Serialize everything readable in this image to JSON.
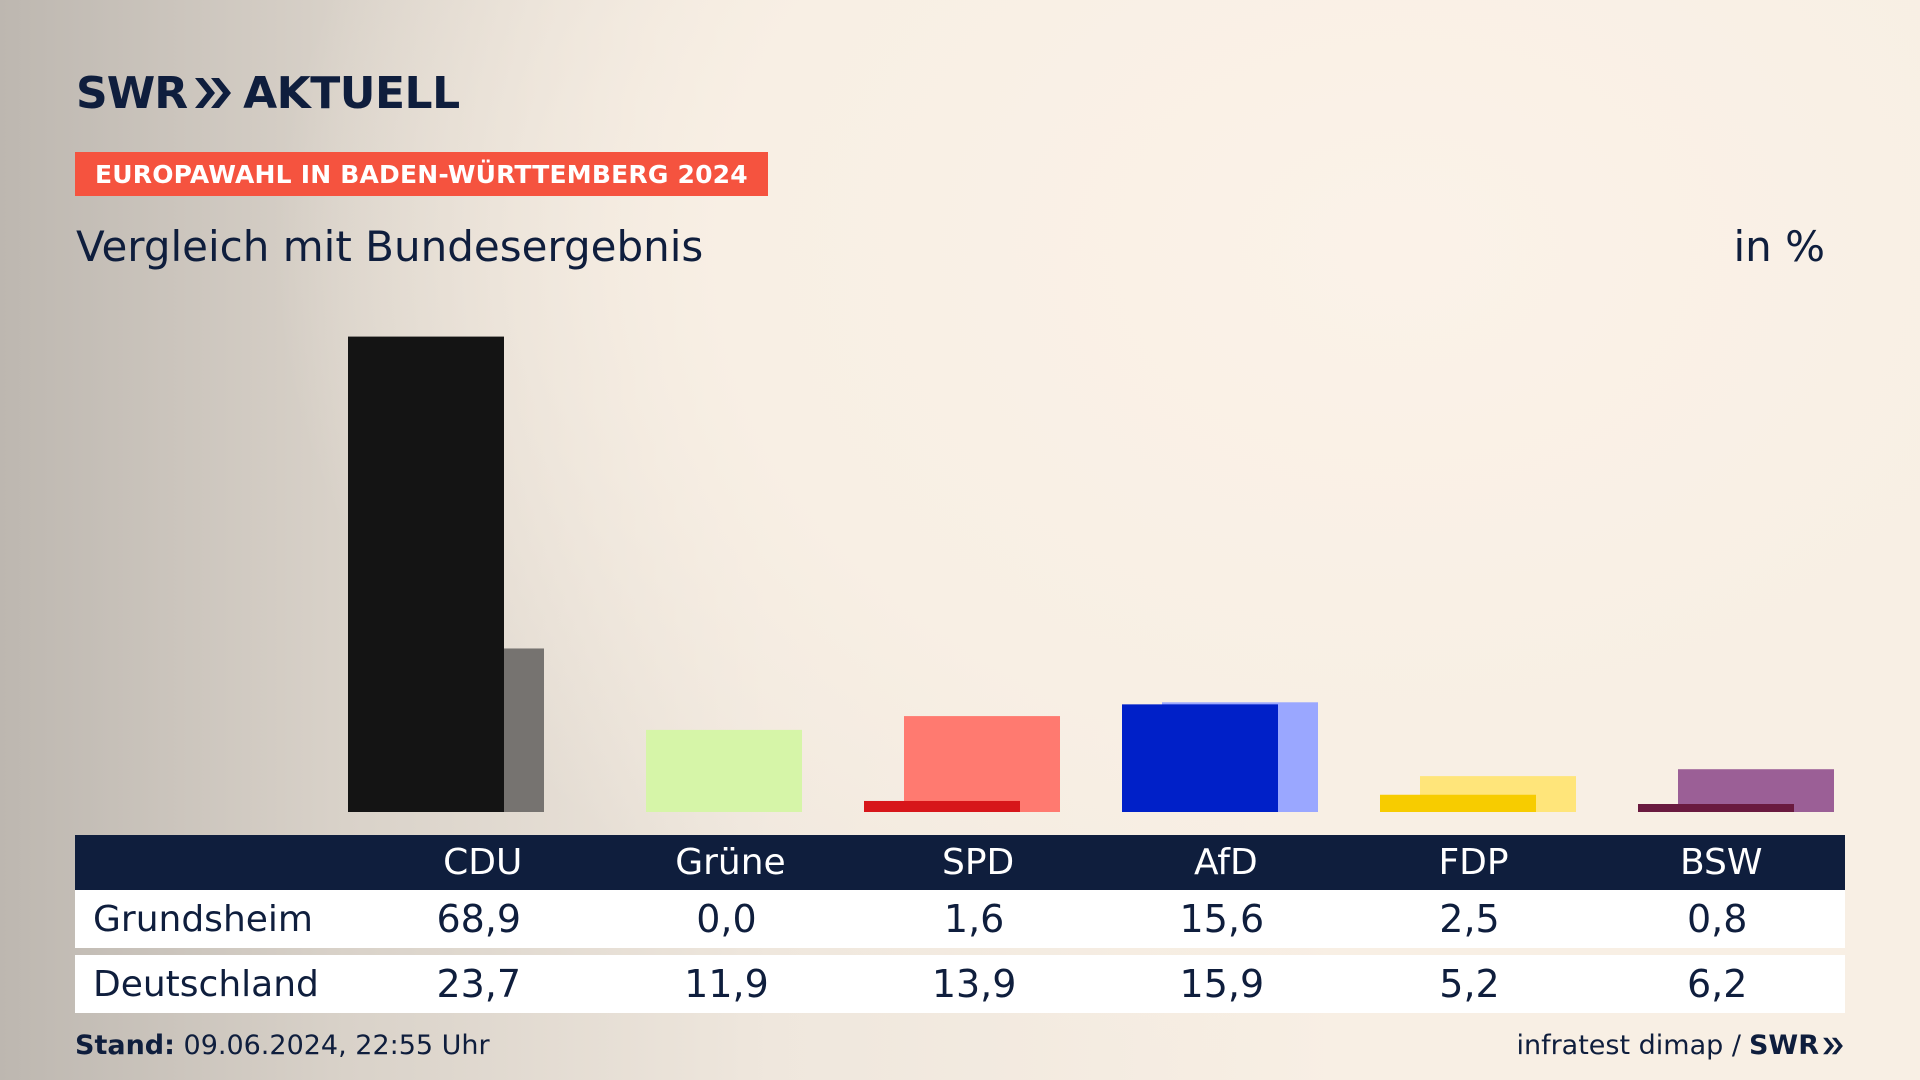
{
  "brand": {
    "name": "SWR",
    "suffix": "AKTUELL"
  },
  "badge": "EUROPAWAHL IN BADEN-WÜRTTEMBERG 2024",
  "unit": "in %",
  "chart_data": {
    "type": "bar",
    "title": "Vergleich mit Bundesergebnis",
    "categories": [
      "CDU",
      "Grüne",
      "SPD",
      "AfD",
      "FDP",
      "BSW"
    ],
    "series": [
      {
        "name": "Grundsheim",
        "values": [
          68.9,
          0.0,
          1.6,
          15.6,
          2.5,
          0.8
        ],
        "colors": [
          "#141414",
          "#a7e06e",
          "#d7161a",
          "#0020c8",
          "#f7cc00",
          "#6a1a3f"
        ]
      },
      {
        "name": "Deutschland",
        "values": [
          23.7,
          11.9,
          13.9,
          15.9,
          5.2,
          6.2
        ],
        "colors": [
          "#767370",
          "#d6f5a8",
          "#ff7a70",
          "#9aa7ff",
          "#ffe57a",
          "#9b5f96"
        ]
      }
    ],
    "ylim": [
      0,
      70
    ]
  },
  "table": {
    "rows": [
      {
        "label": "Grundsheim",
        "values": [
          "68,9",
          "0,0",
          "1,6",
          "15,6",
          "2,5",
          "0,8"
        ]
      },
      {
        "label": "Deutschland",
        "values": [
          "23,7",
          "11,9",
          "13,9",
          "15,9",
          "5,2",
          "6,2"
        ]
      }
    ]
  },
  "footer": {
    "stand_label": "Stand:",
    "stand_value": "09.06.2024, 22:55 Uhr",
    "source": "infratest dimap /",
    "source_brand": "SWR"
  }
}
